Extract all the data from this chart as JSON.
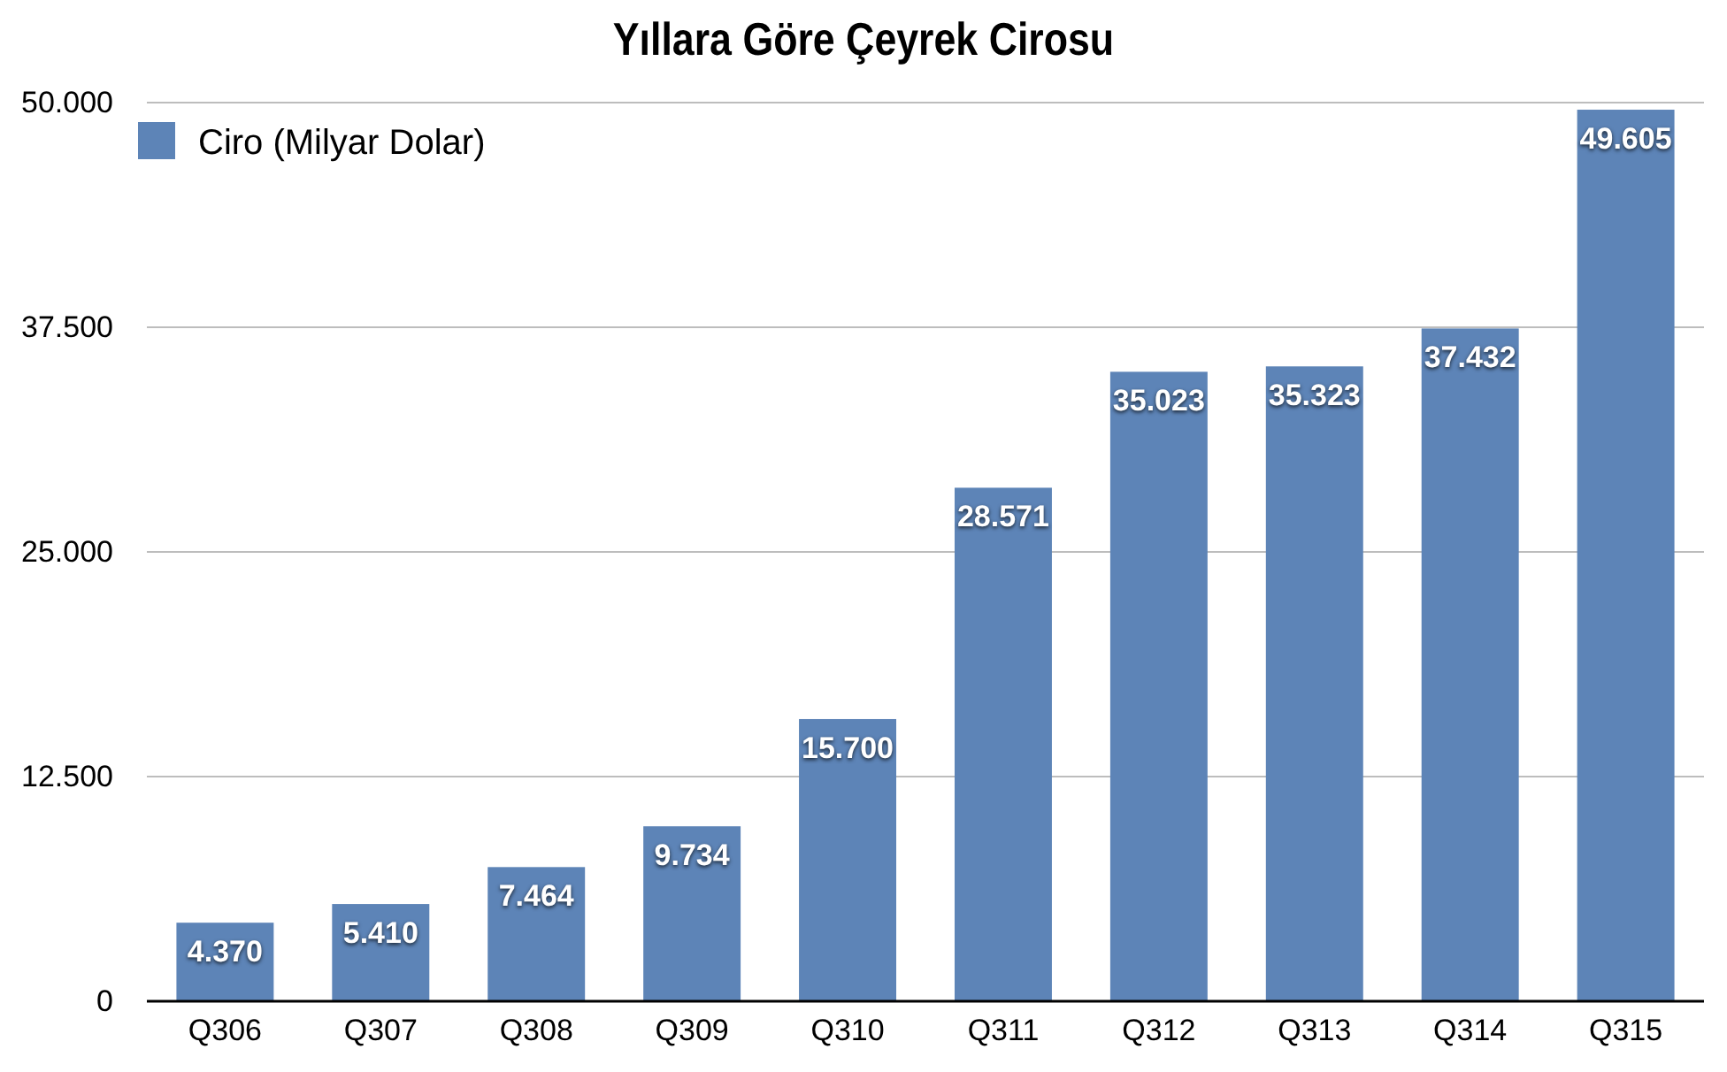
{
  "chart_data": {
    "type": "bar",
    "title": "Yıllara Göre Çeyrek Cirosu",
    "categories": [
      "Q306",
      "Q307",
      "Q308",
      "Q309",
      "Q310",
      "Q311",
      "Q312",
      "Q313",
      "Q314",
      "Q315"
    ],
    "series": [
      {
        "name": "Ciro (Milyar Dolar)",
        "color": "#5d84b7",
        "values": [
          4370,
          5410,
          7464,
          9734,
          15700,
          28571,
          35023,
          35323,
          37432,
          49605
        ],
        "value_labels": [
          "4.370",
          "5.410",
          "7.464",
          "9.734",
          "15.700",
          "28.571",
          "35.023",
          "35.323",
          "37.432",
          "49.605"
        ]
      }
    ],
    "ylim": [
      0,
      50000
    ],
    "yticks": [
      0,
      {
        "value": 12500,
        "label": "12.500"
      },
      {
        "value": 25000,
        "label": "25.000"
      },
      {
        "value": 37500,
        "label": "37.500"
      },
      {
        "value": 50000,
        "label": "50.000"
      }
    ],
    "grid": "y",
    "legend": "top left"
  }
}
